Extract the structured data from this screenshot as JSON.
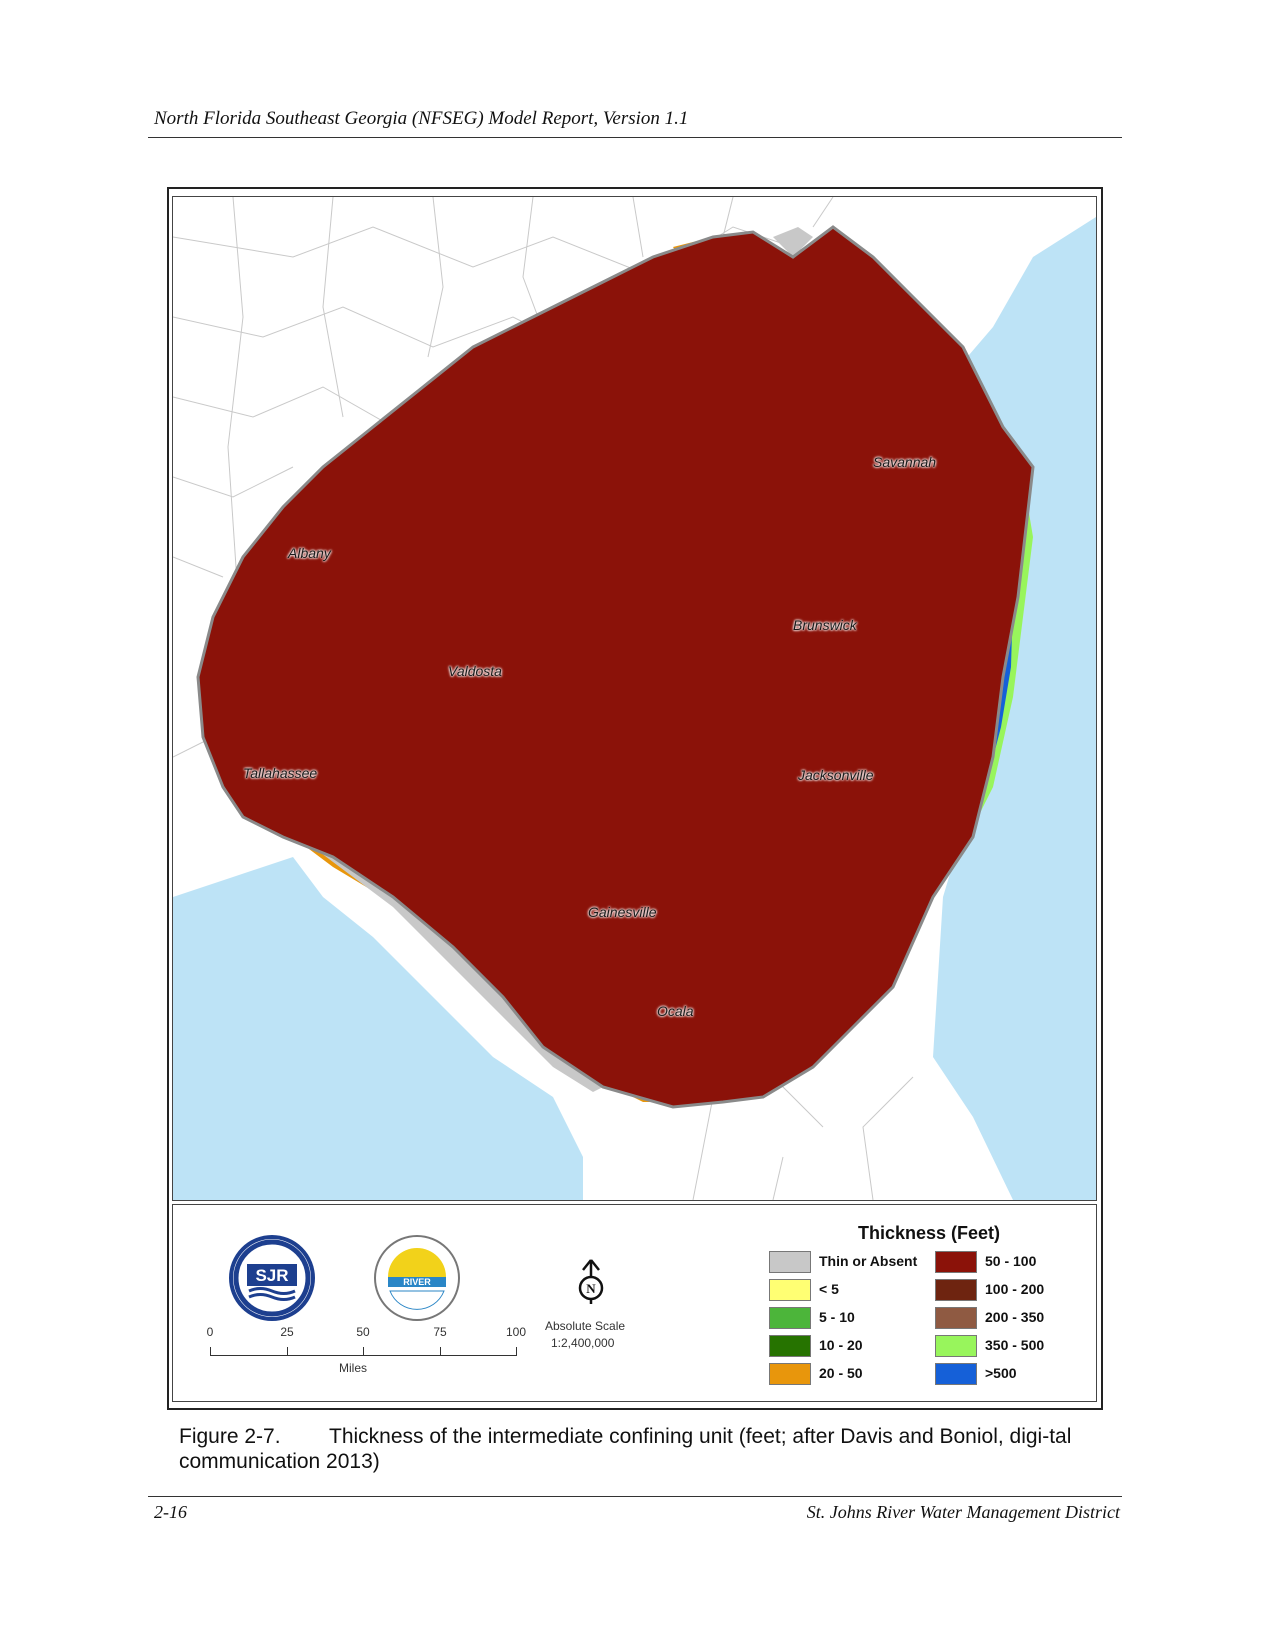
{
  "header": {
    "running_title": "North Florida Southeast Georgia (NFSEG) Model Report, Version 1.1"
  },
  "map": {
    "cities": [
      {
        "key": "albany",
        "name": "Albany"
      },
      {
        "key": "savannah",
        "name": "Savannah"
      },
      {
        "key": "brunswick",
        "name": "Brunswick"
      },
      {
        "key": "valdosta",
        "name": "Valdosta"
      },
      {
        "key": "tallahassee",
        "name": "Tallahassee"
      },
      {
        "key": "jacksonville",
        "name": "Jacksonville"
      },
      {
        "key": "gainesville",
        "name": "Gainesville"
      },
      {
        "key": "ocala",
        "name": "Ocala"
      }
    ],
    "colors": {
      "water": "#bde3f6",
      "land_outside": "#ffffff",
      "border_lines": "#c9c9c9"
    }
  },
  "legend": {
    "title": "Thickness (Feet)",
    "classes": [
      {
        "label": "Thin or Absent",
        "color": "#c8c8c8"
      },
      {
        "label": "< 5",
        "color": "#ffff73"
      },
      {
        "label": "5 - 10",
        "color": "#4cb53a"
      },
      {
        "label": "10 - 20",
        "color": "#267300"
      },
      {
        "label": "20 - 50",
        "color": "#e8960c"
      },
      {
        "label": "50 - 100",
        "color": "#8b1209"
      },
      {
        "label": "100 - 200",
        "color": "#6e2410"
      },
      {
        "label": "200 - 350",
        "color": "#8f5a42"
      },
      {
        "label": "350 - 500",
        "color": "#98f55c"
      },
      {
        "label": ">500",
        "color": "#1560d8"
      }
    ],
    "scale_bar": {
      "ticks": [
        "0",
        "25",
        "50",
        "75",
        "100"
      ],
      "units": "Miles"
    },
    "north_symbol": "N",
    "absolute_scale": {
      "label": "Absolute Scale",
      "value": "1:2,400,000"
    },
    "logos": [
      {
        "icon": "sjrwmd-logo-icon",
        "text": "SJR",
        "ring_text": "ST. JOHNS RIVER WATER MANAGEMENT DISTRICT"
      },
      {
        "icon": "srwmd-logo-icon",
        "text": "RIVER",
        "ring_text": "WATER MANAGEMENT DISTRICT"
      }
    ]
  },
  "caption": {
    "label": "Figure 2-7.",
    "text": "Thickness of the intermediate confining unit (feet; after Davis and Boniol, digi-tal communication 2013)"
  },
  "footer": {
    "page_number": "2-16",
    "organization": "St. Johns River Water Management District"
  }
}
